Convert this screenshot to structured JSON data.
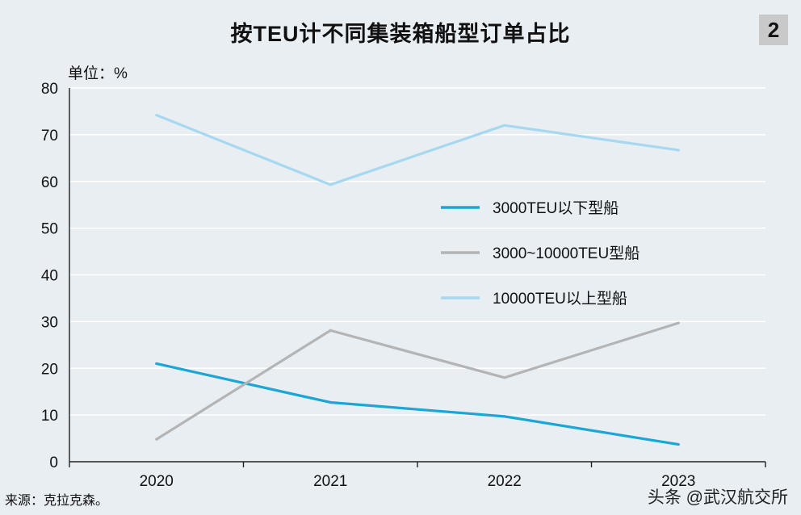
{
  "title": "按TEU计不同集装箱船型订单占比",
  "figure_number": "2",
  "unit_label": "单位：%",
  "source": "来源：克拉克森。",
  "watermark": "头条 @武汉航交所",
  "chart_data": {
    "type": "line",
    "title": "按TEU计不同集装箱船型订单占比",
    "ylabel": "单位：%",
    "xlabel": "",
    "x": [
      "2020",
      "2021",
      "2022",
      "2023"
    ],
    "ylim": [
      0,
      80
    ],
    "yticks": [
      0,
      10,
      20,
      30,
      40,
      50,
      60,
      70,
      80
    ],
    "grid": true,
    "legend_position": "center-right",
    "series": [
      {
        "name": "3000TEU以下型船",
        "color": "#1ba6d6",
        "values": [
          21,
          12.7,
          9.7,
          3.7
        ]
      },
      {
        "name": "3000~10000TEU型船",
        "color": "#b4b4b4",
        "values": [
          4.8,
          28.1,
          18,
          29.7
        ]
      },
      {
        "name": "10000TEU以上型船",
        "color": "#a6d8ef",
        "values": [
          74.2,
          59.3,
          72,
          66.7
        ]
      }
    ]
  }
}
